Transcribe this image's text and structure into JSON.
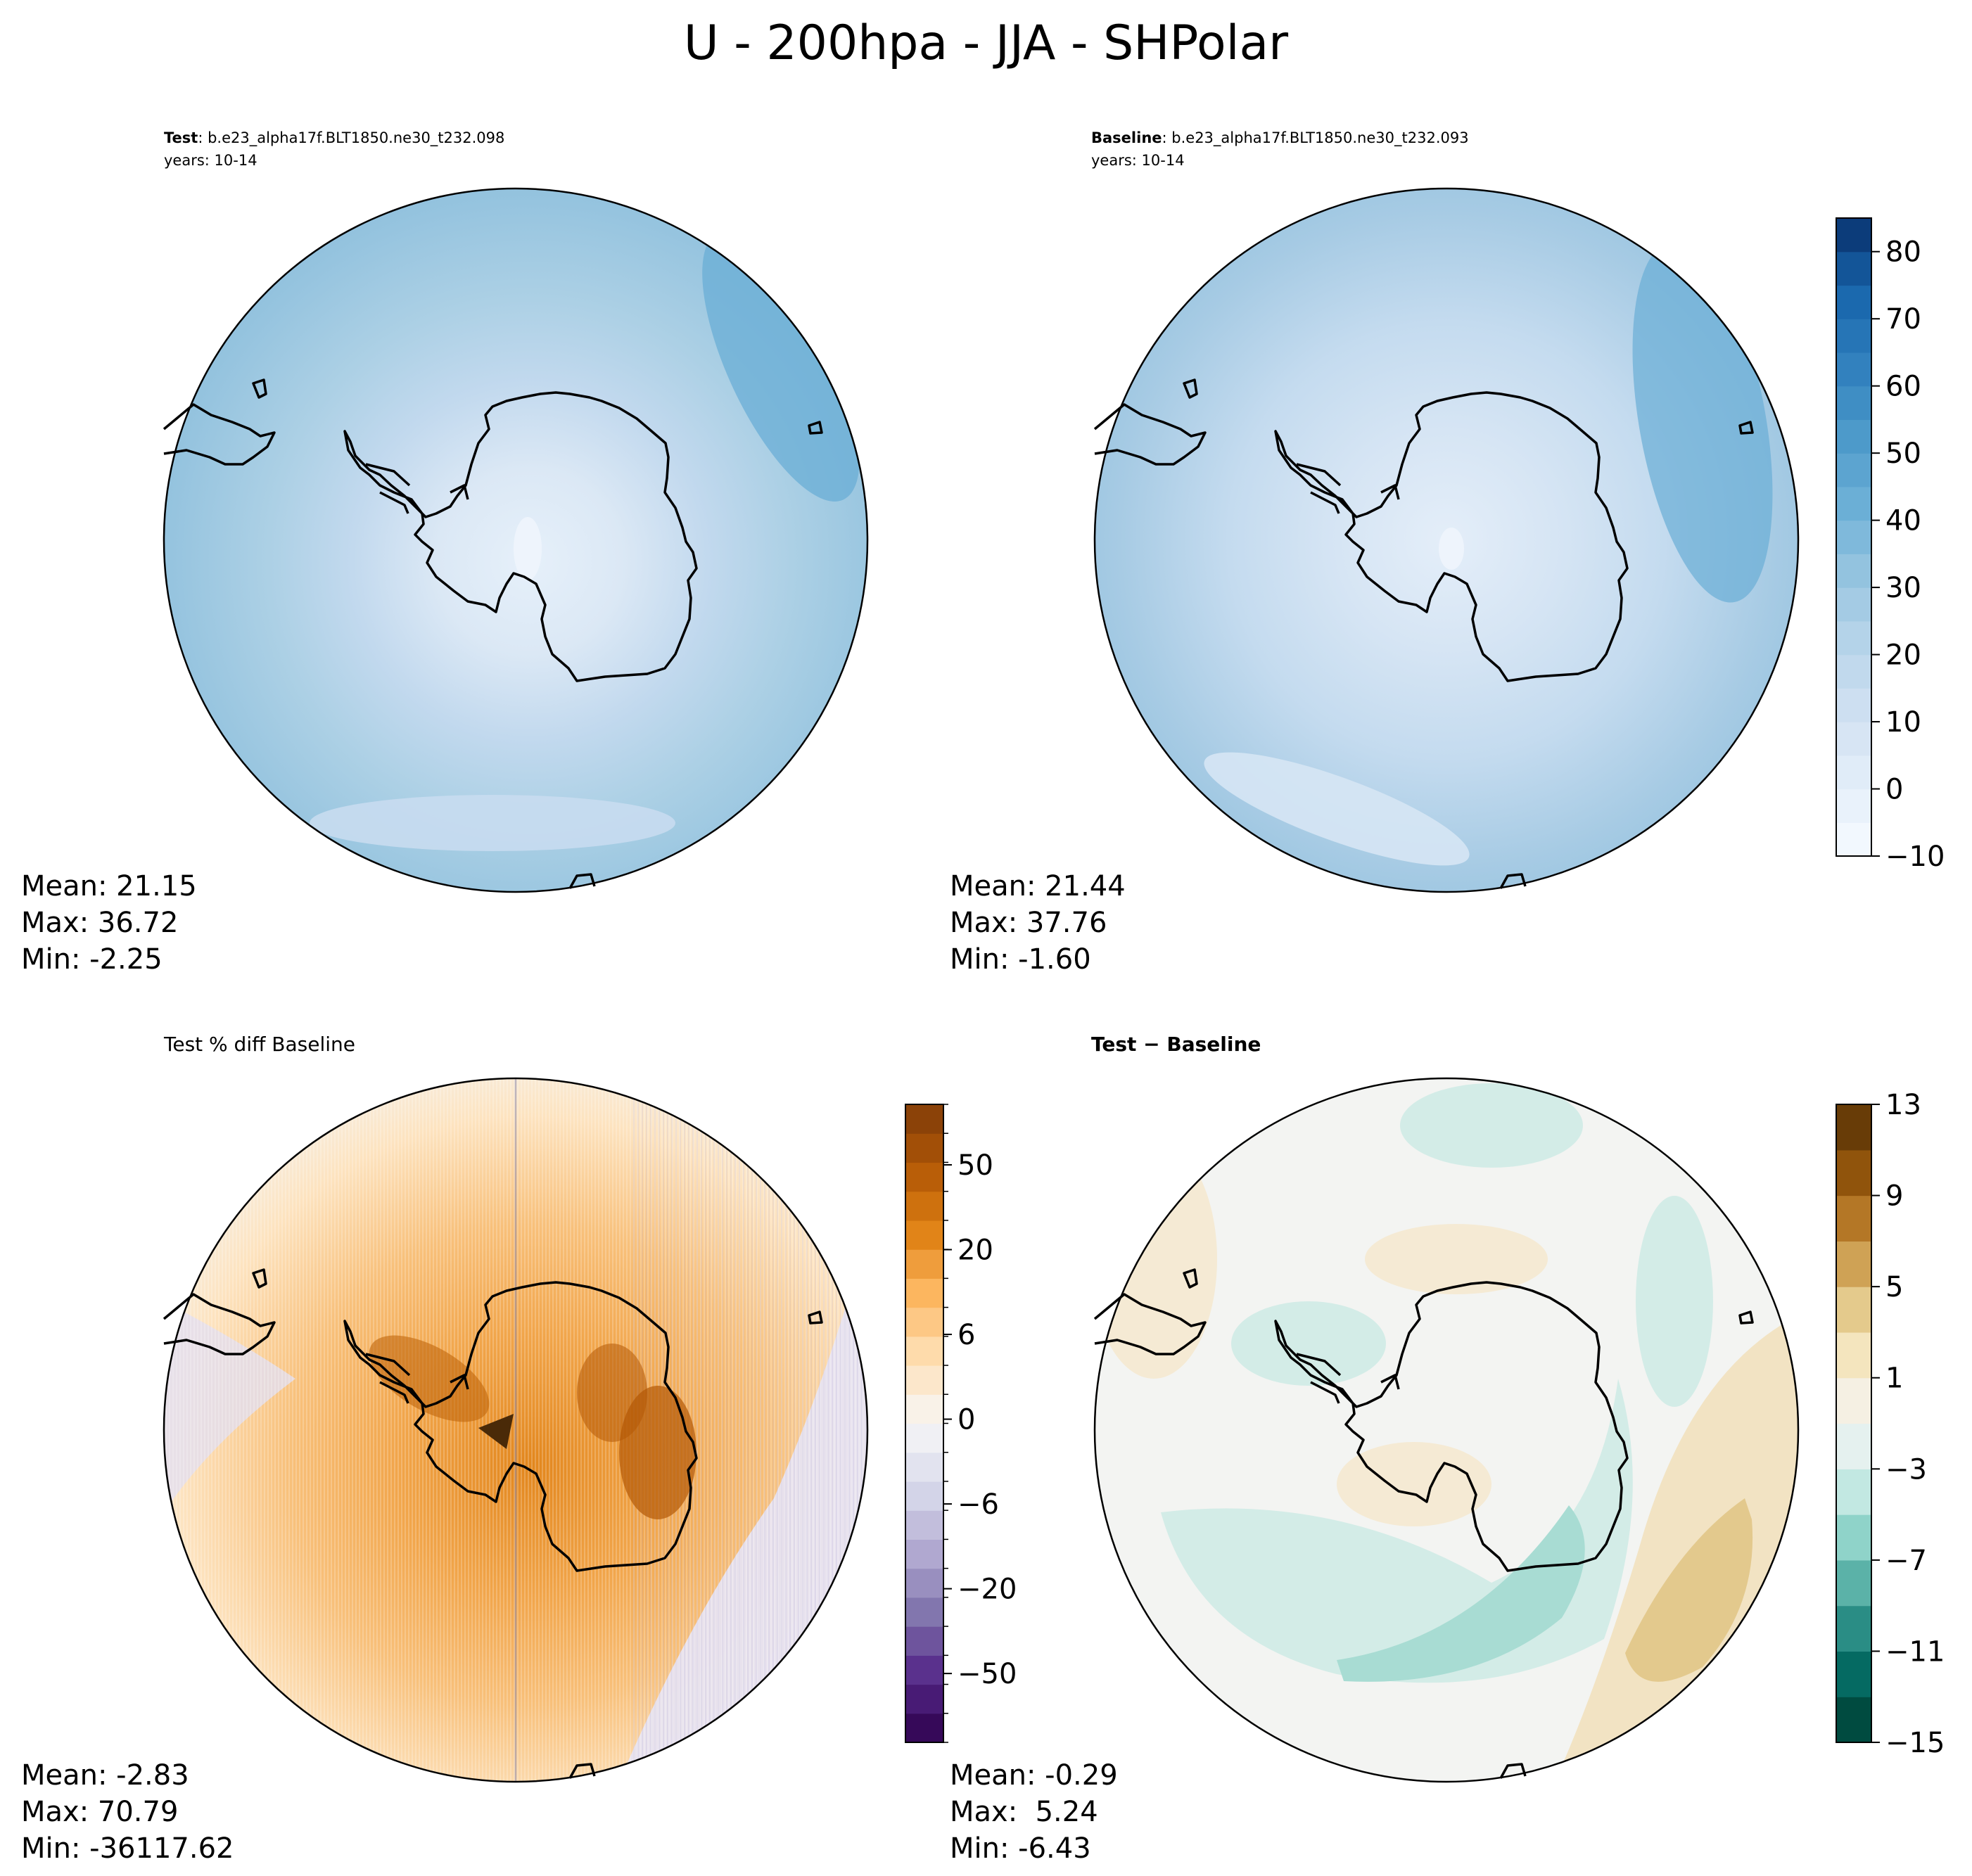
{
  "figure": {
    "title": "U - 200hpa - JJA - SHPolar"
  },
  "panels": {
    "test": {
      "label_bold": "Test",
      "case": ": b.e23_alpha17f.BLT1850.ne30_t232.098",
      "years": "years: 10-14",
      "mean": "Mean: 21.15",
      "max": "Max: 36.72",
      "min": "Min: -2.25"
    },
    "baseline": {
      "label_bold": "Baseline",
      "case": ": b.e23_alpha17f.BLT1850.ne30_t232.093",
      "years": "years: 10-14",
      "mean": "Mean: 21.44",
      "max": "Max: 37.76",
      "min": "Min: -1.60"
    },
    "pctdiff": {
      "title": "Test % diff Baseline",
      "mean": "Mean: -2.83",
      "max": "Max: 70.79",
      "min": "Min: -36117.62"
    },
    "diff": {
      "title": "Test − Baseline",
      "mean": "Mean: -0.29",
      "max": "Max:  5.24",
      "min": "Min: -6.43"
    }
  },
  "colorbars": {
    "fields": {
      "ticks": [
        80,
        70,
        60,
        50,
        40,
        30,
        20,
        10,
        0,
        -10
      ],
      "tick_labels": [
        "80",
        "70",
        "60",
        "50",
        "40",
        "30",
        "20",
        "10",
        "0",
        "−10"
      ],
      "range": [
        -10,
        85
      ],
      "colormap": "Blues",
      "colors": [
        "#f7fbff",
        "#e3eef9",
        "#d0e1f2",
        "#b7d4ea",
        "#94c4df",
        "#6aaed6",
        "#4a98c9",
        "#2e7ebc",
        "#1764ab",
        "#08306b"
      ]
    },
    "pctdiff": {
      "tick_labels": [
        "50",
        "20",
        "6",
        "0",
        "−6",
        "−20",
        "−50"
      ],
      "colormap": "PuOr",
      "colors": [
        "#2d004b",
        "#542788",
        "#8073ac",
        "#b2abd2",
        "#d8daeb",
        "#f7f7f7",
        "#fee0b6",
        "#fdb863",
        "#e08214",
        "#b35806",
        "#7f3b08"
      ]
    },
    "diff": {
      "ticks": [
        13,
        9,
        5,
        1,
        -3,
        -7,
        -11,
        -15
      ],
      "tick_labels": [
        "13",
        "9",
        "5",
        "1",
        "−3",
        "−7",
        "−11",
        "−15"
      ],
      "range": [
        -15,
        13
      ],
      "colormap": "BrBG",
      "colors": [
        "#003c30",
        "#01665e",
        "#35978f",
        "#80cdc1",
        "#c7eae5",
        "#f5f5f5",
        "#f6e8c3",
        "#dfc27d",
        "#bf812d",
        "#8c510a",
        "#543005"
      ]
    }
  }
}
